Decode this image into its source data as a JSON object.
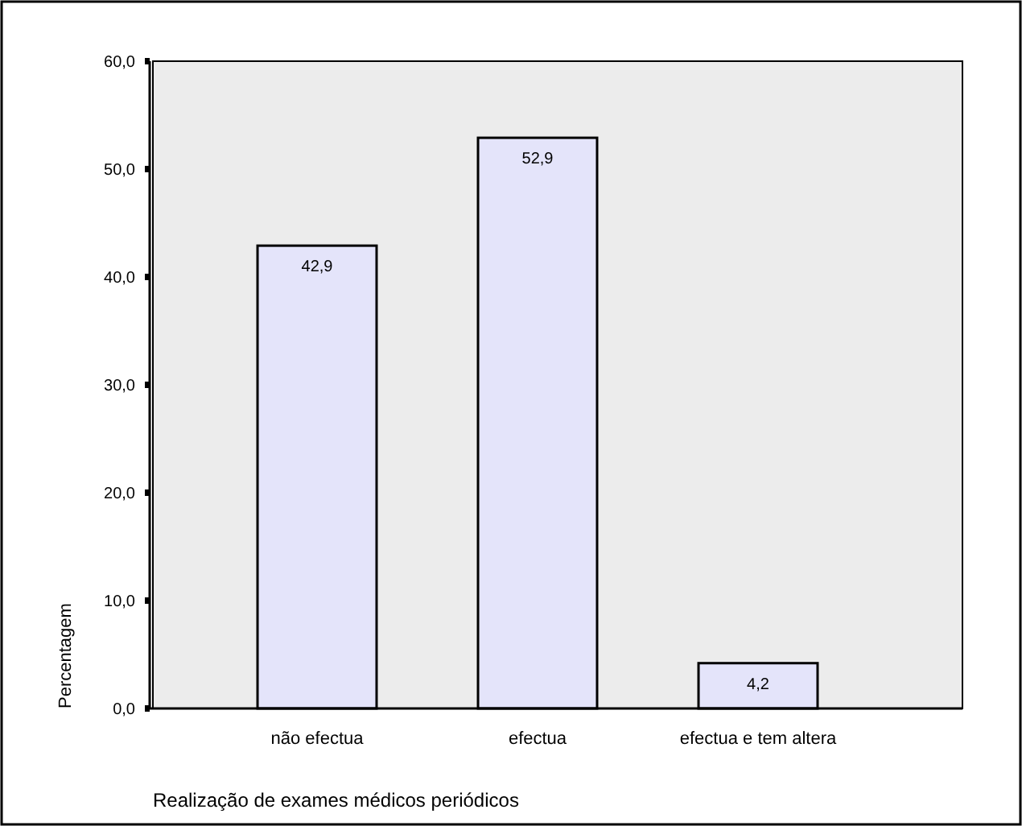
{
  "chart_data": {
    "type": "bar",
    "xlabel": "Realização de exames médicos periódicos",
    "ylabel": "Percentagem",
    "categories": [
      "não efectua",
      "efectua",
      "efectua e tem altera"
    ],
    "values": [
      42.9,
      52.9,
      4.2
    ],
    "value_labels": [
      "42,9",
      "52,9",
      "4,2"
    ],
    "color": "#e4e4fa",
    "ylim": [
      0,
      60
    ],
    "yticks": [
      {
        "value": 0,
        "label": "0,0"
      },
      {
        "value": 10,
        "label": "10,0"
      },
      {
        "value": 20,
        "label": "20,0"
      },
      {
        "value": 30,
        "label": "30,0"
      },
      {
        "value": 40,
        "label": "40,0"
      },
      {
        "value": 50,
        "label": "50,0"
      },
      {
        "value": 60,
        "label": "60,0"
      }
    ],
    "grid": false
  }
}
